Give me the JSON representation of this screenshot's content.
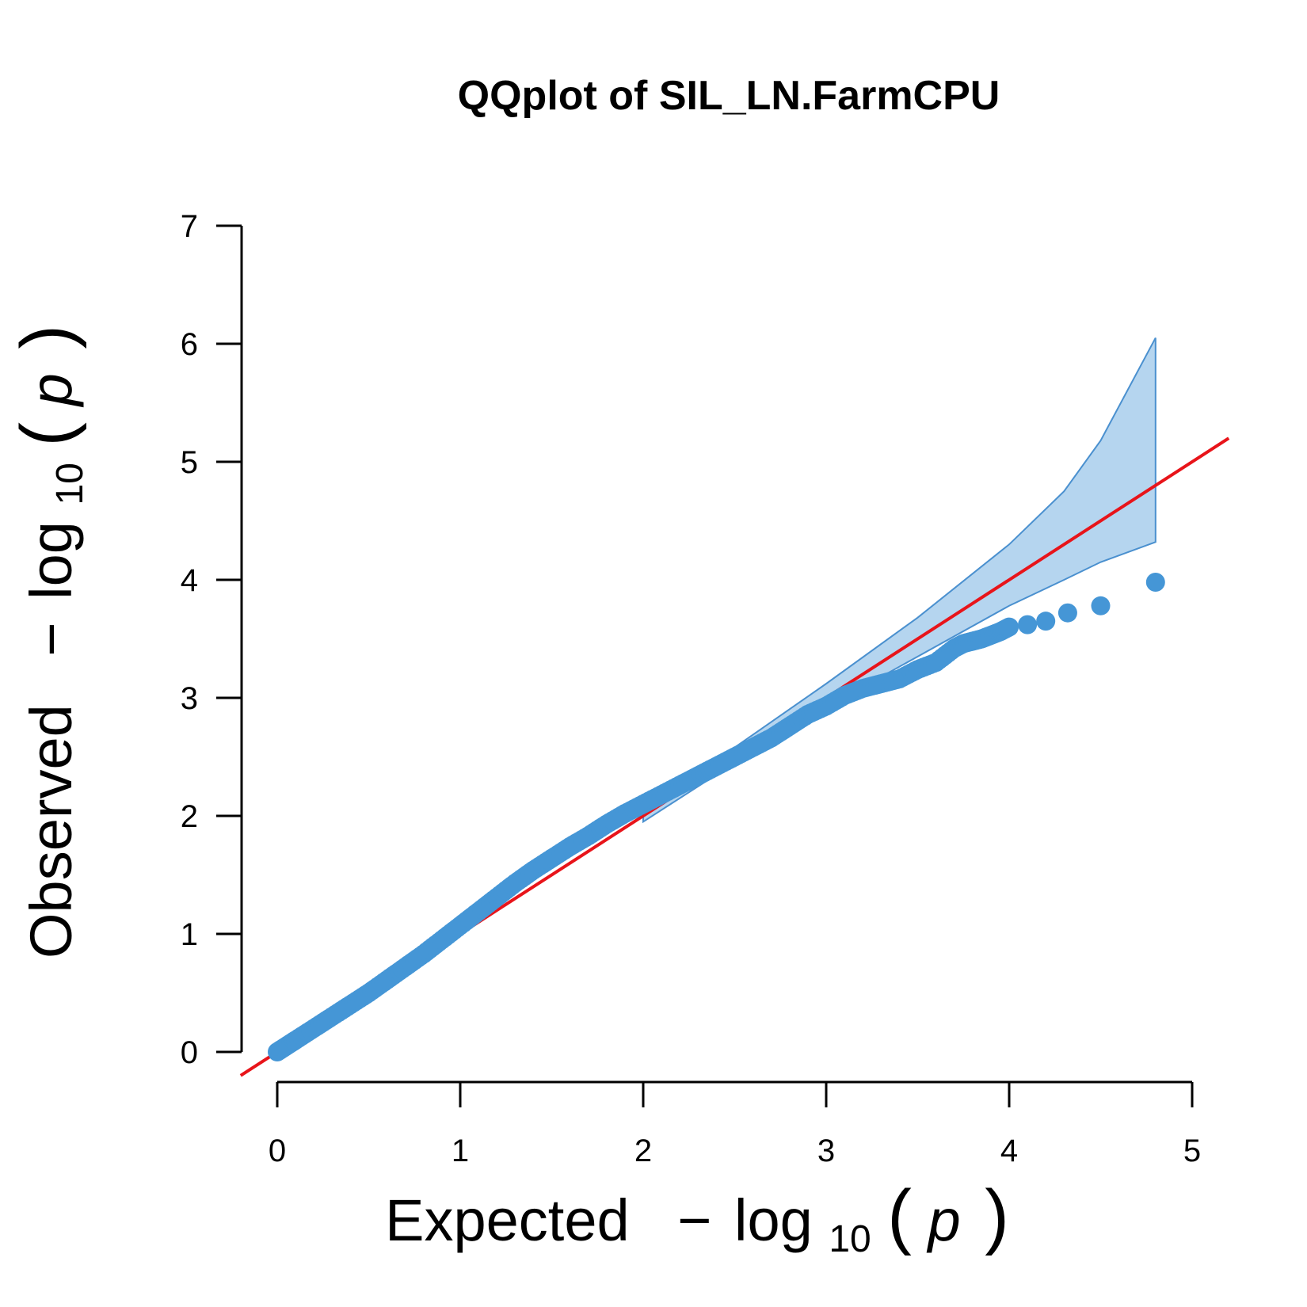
{
  "chart_data": {
    "type": "scatter",
    "title": "QQplot of SIL_LN.FarmCPU",
    "xlabel": {
      "prefix": "Expected",
      "minus": "−",
      "log": "log",
      "sub": "10",
      "var": "p"
    },
    "ylabel": {
      "prefix": "Observed",
      "minus": "−",
      "log": "log",
      "sub": "10",
      "var": "p"
    },
    "xlim": [
      0,
      5
    ],
    "ylim": [
      0,
      7
    ],
    "x_ticks": [
      0,
      1,
      2,
      3,
      4,
      5
    ],
    "y_ticks": [
      0,
      1,
      2,
      3,
      4,
      5,
      6,
      7
    ],
    "grid": false,
    "legend": "none",
    "colors": {
      "points": "#4596d6",
      "band_fill": "#b5d5ef",
      "band_stroke": "#4a90cf",
      "reference_line": "#e8141a"
    },
    "reference_line": {
      "slope": 1,
      "intercept": 0
    },
    "confidence_band": {
      "x": [
        2.0,
        2.5,
        3.0,
        3.5,
        4.0,
        4.3,
        4.5,
        4.8
      ],
      "upper": [
        2.05,
        2.58,
        3.12,
        3.68,
        4.3,
        4.75,
        5.18,
        6.05
      ],
      "lower": [
        1.95,
        2.45,
        2.92,
        3.35,
        3.78,
        4.0,
        4.15,
        4.32
      ]
    },
    "series": [
      {
        "x": [
          0.0,
          0.05,
          0.1,
          0.2,
          0.3,
          0.4,
          0.5,
          0.6,
          0.7,
          0.8,
          0.9,
          1.0,
          1.1,
          1.2,
          1.3,
          1.4,
          1.5,
          1.6,
          1.7,
          1.8,
          1.9,
          2.0,
          2.1,
          2.2,
          2.3,
          2.4,
          2.5,
          2.6,
          2.7,
          2.8,
          2.9,
          3.0,
          3.1,
          3.2,
          3.3,
          3.4,
          3.5,
          3.6,
          3.7,
          3.75,
          3.8,
          3.85,
          3.9,
          3.95,
          4.0,
          4.1,
          4.2,
          4.32,
          4.5,
          4.8
        ],
        "y": [
          0.0,
          0.05,
          0.1,
          0.2,
          0.3,
          0.4,
          0.5,
          0.61,
          0.72,
          0.83,
          0.95,
          1.07,
          1.19,
          1.31,
          1.43,
          1.54,
          1.64,
          1.74,
          1.83,
          1.93,
          2.02,
          2.1,
          2.18,
          2.26,
          2.34,
          2.42,
          2.5,
          2.58,
          2.66,
          2.76,
          2.86,
          2.93,
          3.02,
          3.08,
          3.12,
          3.16,
          3.24,
          3.3,
          3.42,
          3.46,
          3.48,
          3.5,
          3.53,
          3.56,
          3.6,
          3.62,
          3.65,
          3.72,
          3.78,
          3.98
        ]
      }
    ]
  }
}
